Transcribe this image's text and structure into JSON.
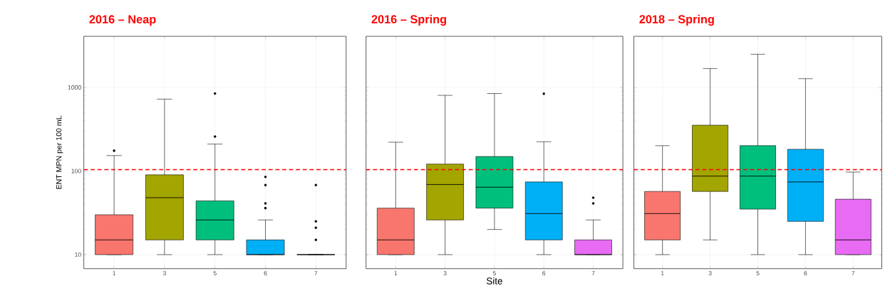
{
  "chart_data": [
    {
      "type": "box",
      "title": "2016 – Neap",
      "ylabel": "ENT MPN per 100 mL",
      "categories": [
        "1",
        "3",
        "5",
        "6",
        "7"
      ],
      "colors": [
        "#f8766d",
        "#a3a500",
        "#00bf7d",
        "#00b0f6",
        null
      ],
      "log": true,
      "ylim": [
        6.8,
        4080
      ],
      "yticks": [
        10,
        100,
        1000
      ],
      "grid": true,
      "boxes": [
        {
          "low": 10,
          "q1": 10,
          "median": 15,
          "q3": 30,
          "high": 153,
          "outliers": [
            175
          ]
        },
        {
          "low": 10,
          "q1": 15,
          "median": 48,
          "q3": 90,
          "high": 724
        },
        {
          "low": 10,
          "q1": 15,
          "median": 26,
          "q3": 44,
          "high": 210,
          "outliers": [
            258,
            845
          ]
        },
        {
          "low": 10,
          "q1": 10,
          "median": 10,
          "q3": 15,
          "high": 26,
          "outliers": [
            36,
            41,
            68,
            85
          ]
        },
        {
          "low": 10,
          "q1": 10,
          "median": 10,
          "q3": 10,
          "high": 10,
          "outliers": [
            15,
            21,
            25,
            68
          ]
        }
      ],
      "ref_lines": [
        {
          "axis": "y",
          "value": 104,
          "color": "#ff0000",
          "line_style": "dashed"
        }
      ]
    },
    {
      "type": "box",
      "title": "2016 – Spring",
      "xlabel": "Site",
      "categories": [
        "1",
        "3",
        "5",
        "6",
        "7"
      ],
      "colors": [
        "#f8766d",
        "#a3a500",
        "#00bf7d",
        "#00b0f6",
        "#e76bf3"
      ],
      "log": true,
      "ylim": [
        6.8,
        4080
      ],
      "yticks": [
        10,
        100,
        1000
      ],
      "tick_labels": "x",
      "grid": true,
      "boxes": [
        {
          "low": 10,
          "q1": 10,
          "median": 15,
          "q3": 36,
          "high": 221
        },
        {
          "low": 10,
          "q1": 26,
          "median": 69,
          "q3": 121,
          "high": 803
        },
        {
          "low": 20,
          "q1": 36,
          "median": 64,
          "q3": 149,
          "high": 845
        },
        {
          "low": 10,
          "q1": 15,
          "median": 31,
          "q3": 74,
          "high": 224,
          "outliers": [
            840
          ]
        },
        {
          "low": 10,
          "q1": 10,
          "median": 10,
          "q3": 15,
          "high": 26,
          "outliers": [
            41,
            48
          ]
        }
      ],
      "ref_lines": [
        {
          "axis": "y",
          "value": 104,
          "color": "#ff0000",
          "line_style": "dashed"
        }
      ]
    },
    {
      "type": "box",
      "title": "2018 – Spring",
      "categories": [
        "1",
        "3",
        "5",
        "6",
        "7"
      ],
      "colors": [
        "#f8766d",
        "#a3a500",
        "#00bf7d",
        "#00b0f6",
        "#e76bf3"
      ],
      "log": true,
      "ylim": [
        6.8,
        4080
      ],
      "yticks": [
        10,
        100,
        1000
      ],
      "tick_labels": "x",
      "grid": true,
      "boxes": [
        {
          "low": 10,
          "q1": 15,
          "median": 31,
          "q3": 57,
          "high": 201
        },
        {
          "low": 15,
          "q1": 57,
          "median": 87,
          "q3": 353,
          "high": 1680
        },
        {
          "low": 10,
          "q1": 35,
          "median": 87,
          "q3": 201,
          "high": 2490
        },
        {
          "low": 10,
          "q1": 25,
          "median": 74,
          "q3": 182,
          "high": 1270
        },
        {
          "low": 10,
          "q1": 10,
          "median": 15,
          "q3": 46,
          "high": 97
        }
      ],
      "ref_lines": [
        {
          "axis": "y",
          "value": 104,
          "color": "#ff0000",
          "line_style": "dashed"
        }
      ]
    }
  ]
}
